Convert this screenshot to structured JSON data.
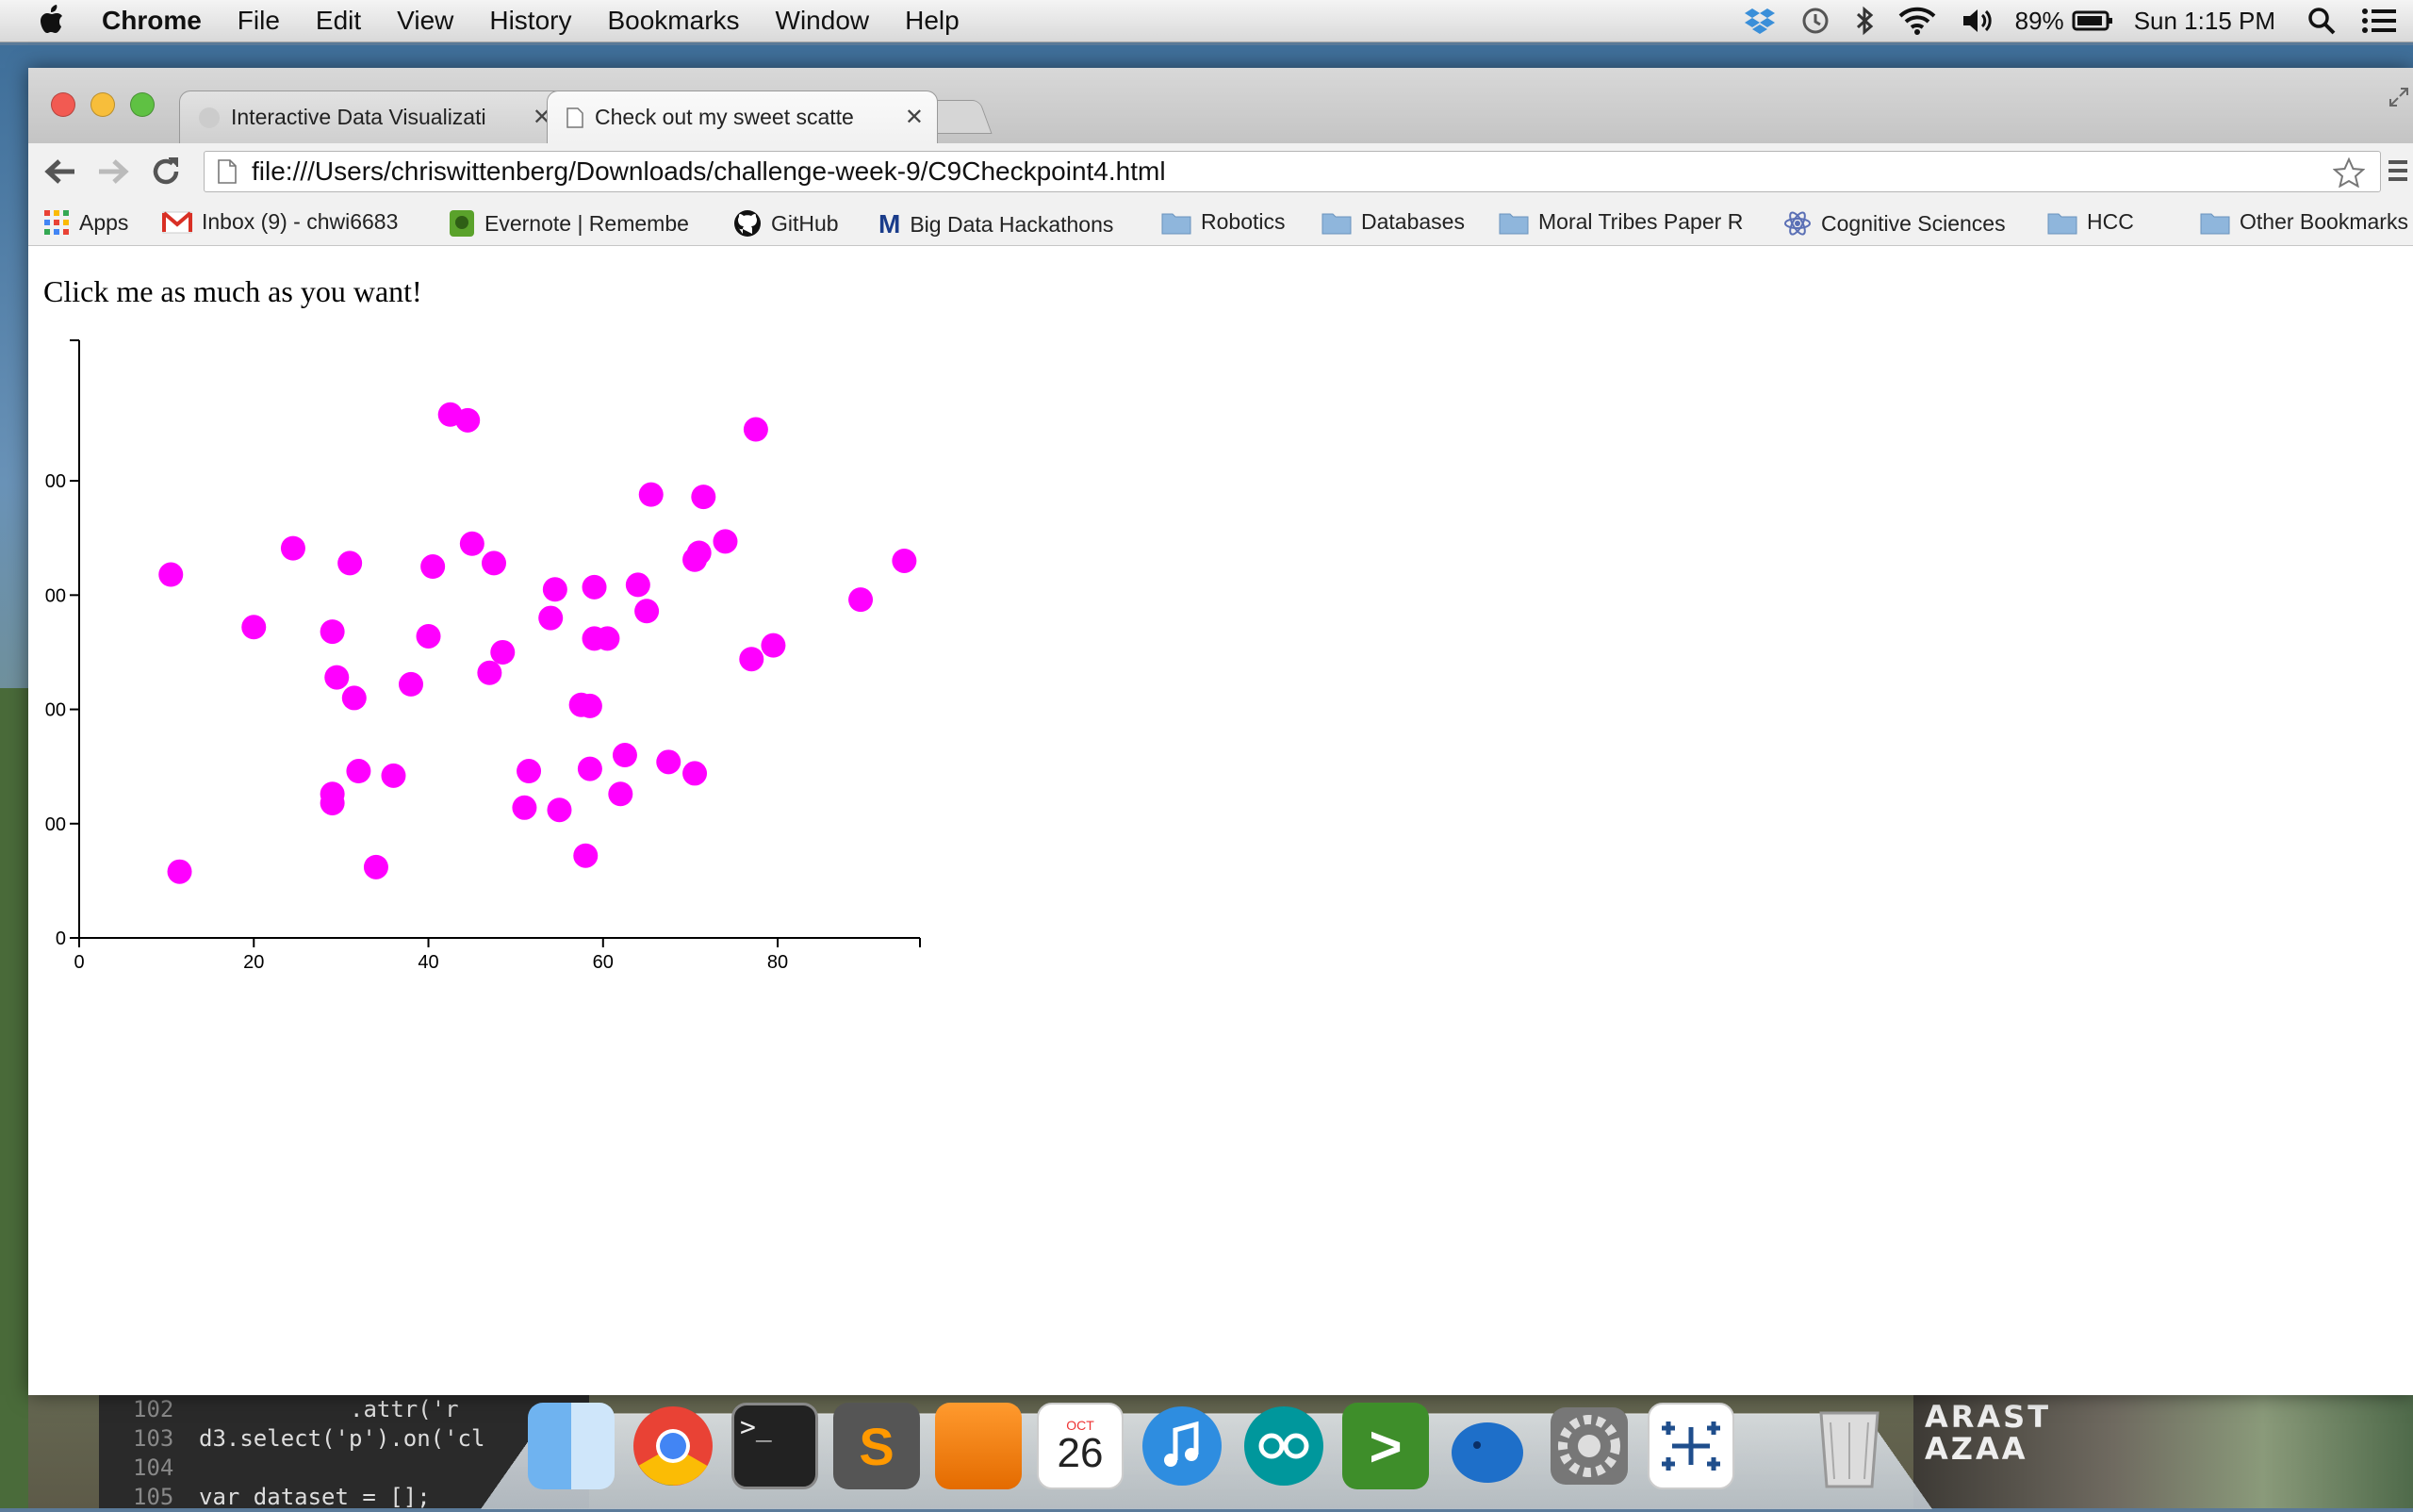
{
  "menubar": {
    "app_name": "Chrome",
    "items": [
      "File",
      "Edit",
      "View",
      "History",
      "Bookmarks",
      "Window",
      "Help"
    ],
    "battery": "89%",
    "clock": "Sun 1:15 PM"
  },
  "tabs": [
    {
      "title": "Interactive Data Visualizati",
      "active": false
    },
    {
      "title": "Check out my sweet scatte",
      "active": true
    }
  ],
  "address_bar": {
    "url": "file:///Users/chriswittenberg/Downloads/challenge-week-9/C9Checkpoint4.html"
  },
  "bookmarks": [
    {
      "label": "Apps",
      "icon": "apps-grid-icon"
    },
    {
      "label": "Inbox (9) - chwi6683",
      "icon": "gmail-icon"
    },
    {
      "label": "Evernote | Remembe",
      "icon": "evernote-icon"
    },
    {
      "label": "GitHub",
      "icon": "github-icon"
    },
    {
      "label": "Big Data Hackathons",
      "icon": "m-icon"
    },
    {
      "label": "Robotics",
      "icon": "folder-icon"
    },
    {
      "label": "Databases",
      "icon": "folder-icon"
    },
    {
      "label": "Moral Tribes Paper R",
      "icon": "folder-icon"
    },
    {
      "label": "Cognitive Sciences",
      "icon": "atom-icon"
    },
    {
      "label": "HCC",
      "icon": "folder-icon"
    },
    {
      "label": "Other Bookmarks",
      "icon": "folder-icon"
    }
  ],
  "page": {
    "prompt_text": "Click me as much as you want!"
  },
  "chart_data": {
    "type": "scatter",
    "point_color": "#ff00ff",
    "xlim": [
      0,
      95
    ],
    "ylim": [
      0,
      490
    ],
    "x_ticks": [
      "0",
      "20",
      "40",
      "60",
      "80"
    ],
    "y_ticks": [
      "0",
      "00",
      "00",
      "00",
      "00"
    ],
    "points": [
      [
        10.5,
        318
      ],
      [
        11.5,
        58
      ],
      [
        20,
        272
      ],
      [
        24.5,
        341
      ],
      [
        29,
        268
      ],
      [
        29.5,
        228
      ],
      [
        29,
        126
      ],
      [
        29,
        118
      ],
      [
        31,
        328
      ],
      [
        31.5,
        210
      ],
      [
        32,
        146
      ],
      [
        34,
        62
      ],
      [
        36,
        142
      ],
      [
        38,
        222
      ],
      [
        40,
        264
      ],
      [
        40.5,
        325
      ],
      [
        42.5,
        458
      ],
      [
        44.5,
        453
      ],
      [
        45,
        345
      ],
      [
        47,
        232
      ],
      [
        47.5,
        328
      ],
      [
        48.5,
        250
      ],
      [
        51,
        114
      ],
      [
        51.5,
        146
      ],
      [
        54,
        280
      ],
      [
        54.5,
        305
      ],
      [
        55,
        112
      ],
      [
        57.5,
        204
      ],
      [
        58.5,
        203
      ],
      [
        58,
        72
      ],
      [
        58.5,
        148
      ],
      [
        59,
        262
      ],
      [
        59,
        307
      ],
      [
        60.5,
        262
      ],
      [
        62,
        126
      ],
      [
        62.5,
        160
      ],
      [
        64,
        309
      ],
      [
        65,
        286
      ],
      [
        65.5,
        388
      ],
      [
        67.5,
        154
      ],
      [
        70.5,
        331
      ],
      [
        70.5,
        144
      ],
      [
        71,
        337
      ],
      [
        71.5,
        386
      ],
      [
        74,
        347
      ],
      [
        77,
        244
      ],
      [
        77.5,
        445
      ],
      [
        79.5,
        256
      ],
      [
        89.5,
        296
      ],
      [
        94.5,
        330
      ]
    ]
  },
  "dock": {
    "items": [
      "finder-icon",
      "chrome-icon",
      "terminal-icon",
      "sublime-text-icon",
      "pages-icon",
      "calendar-icon",
      "itunes-icon",
      "arduino-icon",
      "prompt-icon",
      "evernote-elephant-icon",
      "system-preferences-icon",
      "tableau-icon",
      "trash-icon"
    ],
    "calendar_month": "OCT",
    "calendar_day": "26"
  },
  "editor": {
    "lines": [
      {
        "num": "102",
        "code": ".attr('r"
      },
      {
        "num": "103",
        "code": "d3.select('p').on('cl"
      },
      {
        "num": "104",
        "code": ""
      },
      {
        "num": "105",
        "code": "var dataset = [];"
      }
    ]
  },
  "background": {
    "banner_text": "ARAST\nAZAA"
  }
}
